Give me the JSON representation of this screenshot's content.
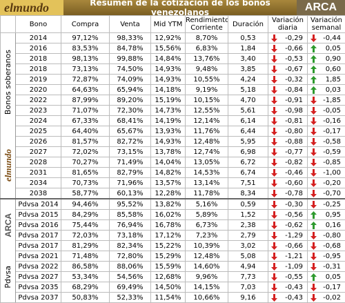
{
  "header": {
    "logo_left": "elmundo",
    "title": "Resumen de la cotización de los bonos venezolanos",
    "logo_right": "ARCA"
  },
  "table": {
    "columns": [
      "Bono",
      "Compra",
      "Venta",
      "Mid YTM",
      "Rendimiento Corriente",
      "Duración",
      "Variación diaria",
      "Variación semanal"
    ],
    "groups": [
      {
        "label": "Bonos soberanos",
        "rows": [
          [
            "2014",
            "97,12%",
            "98,33%",
            "12,92%",
            "8,70%",
            "0,53",
            "-0,29",
            "-0,44"
          ],
          [
            "2016",
            "83,53%",
            "84,78%",
            "15,56%",
            "6,83%",
            "1,84",
            "-0,66",
            "0,05"
          ],
          [
            "2018",
            "98,13%",
            "99,88%",
            "14,84%",
            "13,76%",
            "3,40",
            "-0,53",
            "0,90"
          ],
          [
            "2018",
            "73,13%",
            "74,50%",
            "14,93%",
            "9,48%",
            "3,85",
            "-0,67",
            "0,60"
          ],
          [
            "2019",
            "72,87%",
            "74,09%",
            "14,93%",
            "10,55%",
            "4,24",
            "-0,32",
            "1,85"
          ],
          [
            "2020",
            "64,63%",
            "65,94%",
            "14,18%",
            "9,19%",
            "5,18",
            "-0,84",
            "0,03"
          ],
          [
            "2022",
            "87,99%",
            "89,20%",
            "15,19%",
            "10,15%",
            "4,70",
            "-0,91",
            "-1,85"
          ],
          [
            "2023",
            "71,07%",
            "72,30%",
            "14,73%",
            "12,55%",
            "5,61",
            "-0,98",
            "-0,05"
          ],
          [
            "2024",
            "67,33%",
            "68,41%",
            "14,19%",
            "12,14%",
            "6,14",
            "-0,81",
            "-0,16"
          ],
          [
            "2025",
            "64,40%",
            "65,67%",
            "13,93%",
            "11,76%",
            "6,44",
            "-0,80",
            "-0,17"
          ],
          [
            "2026",
            "81,57%",
            "82,72%",
            "14,93%",
            "12,48%",
            "5,95",
            "-0,88",
            "-0,58"
          ],
          [
            "2027",
            "72,02%",
            "73,15%",
            "13,78%",
            "12,74%",
            "6,98",
            "-0,77",
            "-0,59"
          ],
          [
            "2028",
            "70,27%",
            "71,49%",
            "14,04%",
            "13,05%",
            "6,72",
            "-0,82",
            "-0,85"
          ],
          [
            "2031",
            "81,65%",
            "82,79%",
            "14,82%",
            "14,53%",
            "6,74",
            "-0,46",
            "-1,00"
          ],
          [
            "2034",
            "70,73%",
            "71,96%",
            "13,57%",
            "13,14%",
            "7,51",
            "-0,60",
            "-0,20"
          ],
          [
            "2038",
            "58,77%",
            "60,13%",
            "12,28%",
            "11,78%",
            "8,34",
            "-0,78",
            "-0,70"
          ]
        ]
      },
      {
        "label": "Pdvsa",
        "rows": [
          [
            "Pdvsa 2014",
            "94,46%",
            "95,52%",
            "13,82%",
            "5,16%",
            "0,59",
            "-0,30",
            "-0,25"
          ],
          [
            "Pdvsa 2015",
            "84,29%",
            "85,58%",
            "16,02%",
            "5,89%",
            "1,52",
            "-0,56",
            "0,95"
          ],
          [
            "Pdvsa 2016",
            "75,44%",
            "76,94%",
            "16,78%",
            "6,73%",
            "2,38",
            "-0,62",
            "0,16"
          ],
          [
            "Pdvsa 2017",
            "72,03%",
            "73,18%",
            "17,12%",
            "7,23%",
            "2,79",
            "-1,29",
            "-0,80"
          ],
          [
            "Pdvsa 2017",
            "81,29%",
            "82,34%",
            "15,22%",
            "10,39%",
            "3,02",
            "-0,66",
            "-0,68"
          ],
          [
            "Pdvsa 2021",
            "71,48%",
            "72,80%",
            "15,29%",
            "12,48%",
            "5,08",
            "-1,21",
            "-0,95"
          ],
          [
            "Pdvsa 2022",
            "86,58%",
            "88,06%",
            "15,59%",
            "14,60%",
            "4,94",
            "-1,09",
            "-0,31"
          ],
          [
            "Pdvsa 2027",
            "53,34%",
            "54,56%",
            "12,68%",
            "9,96%",
            "7,73",
            "-0,55",
            "0,05"
          ],
          [
            "Pdvsa 2035",
            "68,29%",
            "69,49%",
            "14,50%",
            "14,15%",
            "7,03",
            "-0,43",
            "-0,17"
          ],
          [
            "Pdvsa 2037",
            "50,83%",
            "52,33%",
            "11,54%",
            "10,66%",
            "9,16",
            "-0,43",
            "-0,02"
          ]
        ]
      }
    ]
  }
}
